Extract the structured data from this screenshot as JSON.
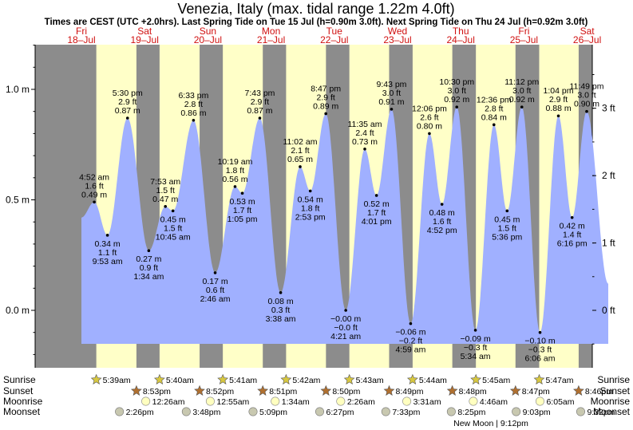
{
  "chart_data": {
    "type": "area",
    "title": "Venezia, Italy (max. tidal range 1.22m 4.0ft)",
    "subtitle": "Times are CEST (UTC +2.0hrs). Last Spring Tide on Tue 15 Jul (h=0.90m 3.0ft). Next Spring Tide on Thu 24 Jul (h=0.92m 3.0ft)",
    "ylim_m": [
      -0.25,
      1.22
    ],
    "xlim_hours_from_18jul_0000": [
      -1.35,
      211.3
    ],
    "left_axis": {
      "unit": "m",
      "ticks": [
        {
          "v": 1.0,
          "label": "1.0 m"
        },
        {
          "v": 0.5,
          "label": "0.5 m"
        },
        {
          "v": 0.0,
          "label": "0.0 m"
        }
      ]
    },
    "right_axis": {
      "unit": "ft",
      "ticks": [
        {
          "v": 3,
          "label": "3 ft"
        },
        {
          "v": 2,
          "label": "2 ft"
        },
        {
          "v": 1,
          "label": "1 ft"
        },
        {
          "v": 0,
          "label": "0 ft"
        }
      ]
    },
    "days": [
      {
        "dow": "Fri",
        "date": "18–Jul",
        "sunrise": "5:39am",
        "sunset": "8:53pm",
        "moonrise": "",
        "moonset": "2:26pm"
      },
      {
        "dow": "Sat",
        "date": "19–Jul",
        "sunrise": "5:40am",
        "sunset": "8:52pm",
        "moonrise": "12:26am",
        "moonset": "3:48pm"
      },
      {
        "dow": "Sun",
        "date": "20–Jul",
        "sunrise": "5:41am",
        "sunset": "8:51pm",
        "moonrise": "12:55am",
        "moonset": "5:09pm"
      },
      {
        "dow": "Mon",
        "date": "21–Jul",
        "sunrise": "5:42am",
        "sunset": "8:50pm",
        "moonrise": "1:34am",
        "moonset": "6:27pm"
      },
      {
        "dow": "Tue",
        "date": "22–Jul",
        "sunrise": "5:43am",
        "sunset": "8:49pm",
        "moonrise": "2:26am",
        "moonset": "7:33pm"
      },
      {
        "dow": "Wed",
        "date": "23–Jul",
        "sunrise": "5:44am",
        "sunset": "8:48pm",
        "moonrise": "3:31am",
        "moonset": "8:25pm"
      },
      {
        "dow": "Thu",
        "date": "24–Jul",
        "sunrise": "5:45am",
        "sunset": "8:47pm",
        "moonrise": "4:46am",
        "moonset": "9:03pm"
      },
      {
        "dow": "Fri",
        "date": "25–Jul",
        "sunrise": "5:47am",
        "sunset": "8:46pm",
        "moonrise": "6:05am",
        "moonset": "9:32pm"
      },
      {
        "dow": "Sat",
        "date": "26–Jul",
        "sunrise": "",
        "sunset": "",
        "moonrise": "",
        "moonset": ""
      }
    ],
    "moon_phase_note": "New Moon | 9:12pm",
    "tides": [
      {
        "hour": 4.87,
        "time": "4:52 am",
        "m": 0.49,
        "m_label": "0.49 m",
        "ft_label": "1.6 ft",
        "type": "high"
      },
      {
        "hour": 9.88,
        "time": "9:53 am",
        "m": 0.34,
        "m_label": "0.34 m",
        "ft_label": "1.1 ft",
        "type": "low"
      },
      {
        "hour": 17.5,
        "time": "5:30 pm",
        "m": 0.87,
        "m_label": "0.87 m",
        "ft_label": "2.9 ft",
        "type": "high"
      },
      {
        "hour": 25.57,
        "time": "1:34 am",
        "m": 0.27,
        "m_label": "0.27 m",
        "ft_label": "0.9 ft",
        "type": "low"
      },
      {
        "hour": 31.88,
        "time": "7:53 am",
        "m": 0.47,
        "m_label": "0.47 m",
        "ft_label": "1.5 ft",
        "type": "high"
      },
      {
        "hour": 34.75,
        "time": "10:45 am",
        "m": 0.45,
        "m_label": "0.45 m",
        "ft_label": "1.5 ft",
        "type": "low"
      },
      {
        "hour": 42.55,
        "time": "6:33 pm",
        "m": 0.86,
        "m_label": "0.86 m",
        "ft_label": "2.8 ft",
        "type": "high"
      },
      {
        "hour": 50.77,
        "time": "2:46 am",
        "m": 0.17,
        "m_label": "0.17 m",
        "ft_label": "0.6 ft",
        "type": "low"
      },
      {
        "hour": 58.32,
        "time": "10:19 am",
        "m": 0.56,
        "m_label": "0.56 m",
        "ft_label": "1.8 ft",
        "type": "high"
      },
      {
        "hour": 61.08,
        "time": "1:05 pm",
        "m": 0.53,
        "m_label": "0.53 m",
        "ft_label": "1.7 ft",
        "type": "low"
      },
      {
        "hour": 67.72,
        "time": "7:43 pm",
        "m": 0.87,
        "m_label": "0.87 m",
        "ft_label": "2.9 ft",
        "type": "high"
      },
      {
        "hour": 75.63,
        "time": "3:38 am",
        "m": 0.08,
        "m_label": "0.08 m",
        "ft_label": "0.3 ft",
        "type": "low"
      },
      {
        "hour": 83.03,
        "time": "11:02 am",
        "m": 0.65,
        "m_label": "0.65 m",
        "ft_label": "2.1 ft",
        "type": "high"
      },
      {
        "hour": 86.88,
        "time": "2:53 pm",
        "m": 0.54,
        "m_label": "0.54 m",
        "ft_label": "1.8 ft",
        "type": "low"
      },
      {
        "hour": 92.78,
        "time": "8:47 pm",
        "m": 0.89,
        "m_label": "0.89 m",
        "ft_label": "2.9 ft",
        "type": "high"
      },
      {
        "hour": 100.35,
        "time": "4:21 am",
        "m": -0.0,
        "m_label": "−0.00 m",
        "ft_label": "−0.0 ft",
        "type": "low"
      },
      {
        "hour": 107.58,
        "time": "11:35 am",
        "m": 0.73,
        "m_label": "0.73 m",
        "ft_label": "2.4 ft",
        "type": "high"
      },
      {
        "hour": 112.02,
        "time": "4:01 pm",
        "m": 0.52,
        "m_label": "0.52 m",
        "ft_label": "1.7 ft",
        "type": "low"
      },
      {
        "hour": 117.72,
        "time": "9:43 pm",
        "m": 0.91,
        "m_label": "0.91 m",
        "ft_label": "3.0 ft",
        "type": "high"
      },
      {
        "hour": 124.98,
        "time": "4:59 am",
        "m": -0.06,
        "m_label": "−0.06 m",
        "ft_label": "−0.2 ft",
        "type": "low"
      },
      {
        "hour": 132.1,
        "time": "12:06 pm",
        "m": 0.8,
        "m_label": "0.80 m",
        "ft_label": "2.6 ft",
        "type": "high"
      },
      {
        "hour": 136.87,
        "time": "4:52 pm",
        "m": 0.48,
        "m_label": "0.48 m",
        "ft_label": "1.6 ft",
        "type": "low"
      },
      {
        "hour": 142.5,
        "time": "10:30 pm",
        "m": 0.92,
        "m_label": "0.92 m",
        "ft_label": "3.0 ft",
        "type": "high"
      },
      {
        "hour": 149.57,
        "time": "5:34 am",
        "m": -0.09,
        "m_label": "−0.09 m",
        "ft_label": "−0.3 ft",
        "type": "low"
      },
      {
        "hour": 156.6,
        "time": "12:36 pm",
        "m": 0.84,
        "m_label": "0.84 m",
        "ft_label": "2.8 ft",
        "type": "high"
      },
      {
        "hour": 161.6,
        "time": "5:36 pm",
        "m": 0.45,
        "m_label": "0.45 m",
        "ft_label": "1.5 ft",
        "type": "low"
      },
      {
        "hour": 167.2,
        "time": "11:12 pm",
        "m": 0.92,
        "m_label": "0.92 m",
        "ft_label": "3.0 ft",
        "type": "high"
      },
      {
        "hour": 174.1,
        "time": "6:06 am",
        "m": -0.1,
        "m_label": "−0.10 m",
        "ft_label": "−0.3 ft",
        "type": "low"
      },
      {
        "hour": 181.07,
        "time": "1:04 pm",
        "m": 0.88,
        "m_label": "0.88 m",
        "ft_label": "2.9 ft",
        "type": "high"
      },
      {
        "hour": 186.27,
        "time": "6:16 pm",
        "m": 0.42,
        "m_label": "0.42 m",
        "ft_label": "1.4 ft",
        "type": "low"
      },
      {
        "hour": 191.82,
        "time": "11:49 pm",
        "m": 0.9,
        "m_label": "0.90 m",
        "ft_label": "3.0 ft",
        "type": "high"
      }
    ],
    "curve_start": {
      "hour": 0.0,
      "m": 0.42
    },
    "curve_end": {
      "hour": 200.0,
      "m": 0.12
    }
  },
  "rows": {
    "sunrise": "Sunrise",
    "sunset": "Sunset",
    "moonrise": "Moonrise",
    "moonset": "Moonset"
  },
  "colors": {
    "night": "#8c8c8c",
    "day": "#ffffc8",
    "water": "#a0b0ff",
    "day_label": "#d01010",
    "sun_star": "#d8c840",
    "sunset_star": "#b07030",
    "moon": "#ffffc0",
    "moonset": "#c8c8b0"
  }
}
